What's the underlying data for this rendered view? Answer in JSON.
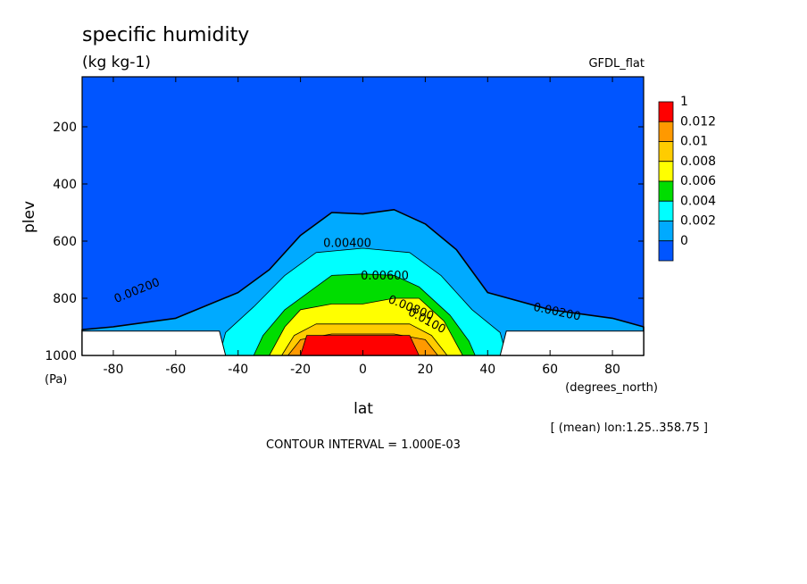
{
  "header": {
    "title": "specific humidity",
    "units": "(kg kg-1)",
    "dataset": "GFDL_flat"
  },
  "footer": {
    "mean_info": "[ (mean) lon:1.25..358.75 ]",
    "contour_interval": "CONTOUR INTERVAL = 1.000E-03"
  },
  "chart_data": {
    "type": "heatmap",
    "title": "specific humidity",
    "units": "(kg kg-1)",
    "xlabel": "lat",
    "xunits": "(degrees_north)",
    "ylabel": "plev",
    "yunits": "(Pa)",
    "xlim": [
      -90,
      90
    ],
    "ylim": [
      1000,
      25
    ],
    "x_ticks": [
      -80,
      -60,
      -40,
      -20,
      0,
      20,
      40,
      60,
      80
    ],
    "y_ticks": [
      200,
      400,
      600,
      800,
      1000
    ],
    "colorbar": {
      "labels": [
        "1",
        "0.012",
        "0.01",
        "0.008",
        "0.006",
        "0.004",
        "0.002",
        "0"
      ],
      "colors": [
        "#ff0000",
        "#ff9900",
        "#ffcc00",
        "#ffff00",
        "#00dd00",
        "#00ffff",
        "#00aaff",
        "#0055ff"
      ]
    },
    "bands": [
      {
        "level": 0,
        "color": "#0055ff",
        "boundary": [
          [
            -90,
            25
          ],
          [
            90,
            25
          ],
          [
            90,
            1000
          ],
          [
            -90,
            1000
          ]
        ]
      },
      {
        "level": 0.002,
        "color": "#00aaff",
        "boundary": [
          [
            -90,
            910
          ],
          [
            -80,
            900
          ],
          [
            -60,
            870
          ],
          [
            -40,
            780
          ],
          [
            -30,
            700
          ],
          [
            -20,
            580
          ],
          [
            -10,
            500
          ],
          [
            0,
            505
          ],
          [
            10,
            490
          ],
          [
            20,
            540
          ],
          [
            30,
            630
          ],
          [
            40,
            780
          ],
          [
            60,
            840
          ],
          [
            80,
            870
          ],
          [
            90,
            900
          ],
          [
            90,
            1000
          ],
          [
            -90,
            1000
          ]
        ]
      },
      {
        "level": 0.004,
        "color": "#00ffff",
        "boundary": [
          [
            -46,
            1000
          ],
          [
            -44,
            920
          ],
          [
            -35,
            830
          ],
          [
            -25,
            720
          ],
          [
            -15,
            640
          ],
          [
            0,
            625
          ],
          [
            15,
            640
          ],
          [
            25,
            720
          ],
          [
            35,
            840
          ],
          [
            44,
            920
          ],
          [
            46,
            1000
          ]
        ]
      },
      {
        "level": 0.006,
        "color": "#00dd00",
        "boundary": [
          [
            -35,
            1000
          ],
          [
            -32,
            930
          ],
          [
            -25,
            840
          ],
          [
            -15,
            760
          ],
          [
            -10,
            720
          ],
          [
            0,
            715
          ],
          [
            10,
            720
          ],
          [
            18,
            760
          ],
          [
            28,
            860
          ],
          [
            34,
            950
          ],
          [
            36,
            1000
          ]
        ]
      },
      {
        "level": 0.008,
        "color": "#ffff00",
        "boundary": [
          [
            -30,
            1000
          ],
          [
            -25,
            900
          ],
          [
            -20,
            840
          ],
          [
            -10,
            820
          ],
          [
            0,
            820
          ],
          [
            10,
            800
          ],
          [
            18,
            800
          ],
          [
            26,
            880
          ],
          [
            30,
            960
          ],
          [
            32,
            1000
          ]
        ]
      },
      {
        "level": 0.01,
        "color": "#ffcc00",
        "boundary": [
          [
            -26,
            1000
          ],
          [
            -22,
            930
          ],
          [
            -15,
            890
          ],
          [
            0,
            890
          ],
          [
            15,
            890
          ],
          [
            22,
            930
          ],
          [
            27,
            1000
          ]
        ]
      },
      {
        "level": 0.012,
        "color": "#ff9900",
        "boundary": [
          [
            -24,
            1000
          ],
          [
            -20,
            945
          ],
          [
            -10,
            925
          ],
          [
            10,
            925
          ],
          [
            20,
            945
          ],
          [
            24,
            1000
          ]
        ]
      },
      {
        "level": 1,
        "color": "#ff0000",
        "boundary": [
          [
            -20,
            1000
          ],
          [
            -18,
            930
          ],
          [
            15,
            930
          ],
          [
            18,
            1000
          ]
        ]
      }
    ],
    "contour_labels": [
      {
        "text": "0.00200",
        "x": -72,
        "y": 785,
        "angle": -22
      },
      {
        "text": "0.00400",
        "x": -5,
        "y": 620,
        "angle": 0
      },
      {
        "text": "0.00600",
        "x": 7,
        "y": 735,
        "angle": 0
      },
      {
        "text": "0.00800",
        "x": 15,
        "y": 845,
        "angle": 22
      },
      {
        "text": "0.0100",
        "x": 20,
        "y": 890,
        "angle": 28
      },
      {
        "text": "0.00200",
        "x": 62,
        "y": 860,
        "angle": 12
      }
    ]
  }
}
